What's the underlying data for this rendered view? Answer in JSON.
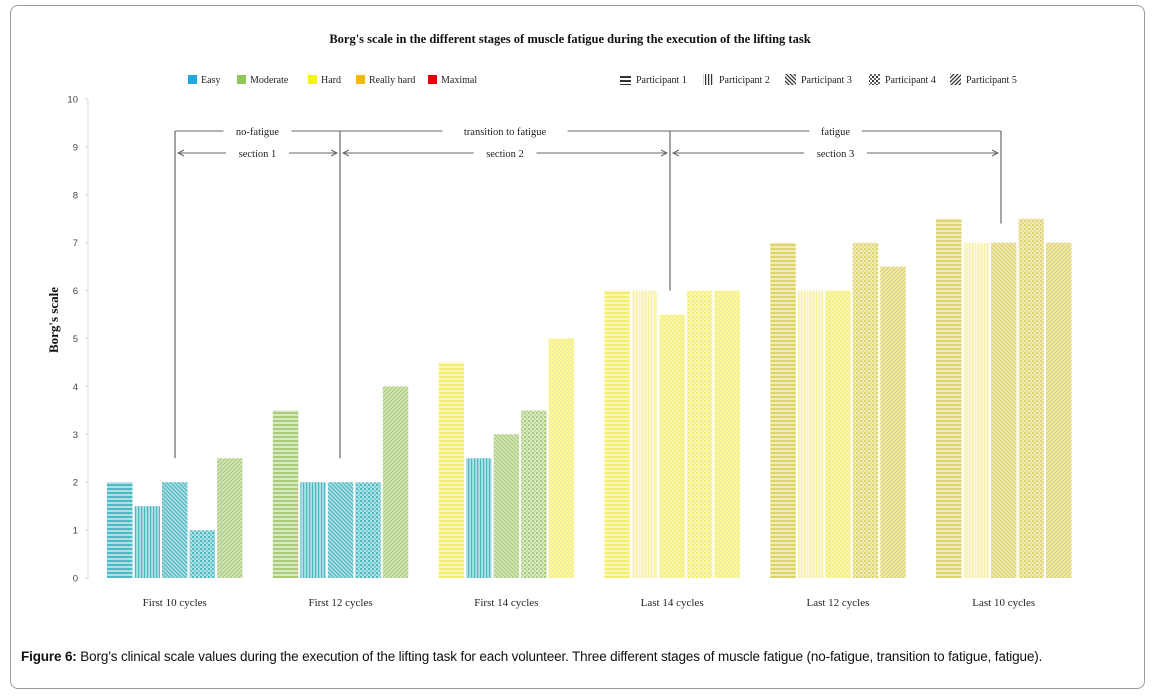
{
  "figure": {
    "caption_label": "Figure 6:",
    "caption_text": " Borg’s clinical scale values during the execution of the lifting task for each volunteer. Three different stages of muscle fatigue (no-fatigue, transition to fatigue, fatigue)."
  },
  "chart_data": {
    "type": "bar",
    "title": "Borg's scale in the different stages of muscle fatigue during the execution of the lifting task",
    "xlabel": "",
    "ylabel": "Borg's scale",
    "ylim": [
      0,
      10
    ],
    "yticks": [
      "0",
      "1",
      "2",
      "3",
      "4",
      "5",
      "6",
      "7",
      "8",
      "9",
      "10"
    ],
    "grid": false,
    "categories": [
      "First 10 cycles",
      "First 12 cycles",
      "First 14 cycles",
      "Last 14 cycles",
      "Last 12 cycles",
      "Last 10 cycles"
    ],
    "series": [
      {
        "name": "Participant 1",
        "pattern": "horizontal",
        "values": [
          2,
          3.5,
          4.5,
          6,
          7,
          7.5
        ],
        "ratings": [
          "Easy",
          "Moderate",
          "Hard",
          "Hard",
          "Really hard",
          "Really hard"
        ]
      },
      {
        "name": "Participant 2",
        "pattern": "vertical",
        "values": [
          1.5,
          2,
          2.5,
          6,
          6,
          7
        ],
        "ratings": [
          "Easy",
          "Easy",
          "Easy",
          "Hard",
          "Hard",
          "Hard"
        ]
      },
      {
        "name": "Participant 3",
        "pattern": "diagonal-down",
        "values": [
          2,
          2,
          3,
          5.5,
          6,
          7
        ],
        "ratings": [
          "Easy",
          "Easy",
          "Moderate",
          "Hard",
          "Hard",
          "Really hard"
        ]
      },
      {
        "name": "Participant 4",
        "pattern": "grid",
        "values": [
          1,
          2,
          3.5,
          6,
          7,
          7.5
        ],
        "ratings": [
          "Easy",
          "Easy",
          "Moderate",
          "Hard",
          "Really hard",
          "Really hard"
        ]
      },
      {
        "name": "Participant 5",
        "pattern": "diagonal-up",
        "values": [
          2.5,
          4,
          5,
          6,
          6.5,
          7
        ],
        "ratings": [
          "Moderate",
          "Moderate",
          "Hard",
          "Hard",
          "Really hard",
          "Really hard"
        ]
      }
    ],
    "color_legend": [
      {
        "label": "Easy",
        "color": "#1ea7e1"
      },
      {
        "label": "Moderate",
        "color": "#8dc856"
      },
      {
        "label": "Hard",
        "color": "#f5f50c"
      },
      {
        "label": "Really hard",
        "color": "#f5b800"
      },
      {
        "label": "Maximal",
        "color": "#e8000b"
      }
    ],
    "bar_colors": {
      "Easy": "#4fb8c2",
      "Moderate": "#a9cc7a",
      "Hard": "#f3ee6e",
      "Really hard": "#ddd36a",
      "Maximal": "#e8000b"
    },
    "pattern_legend": [
      {
        "label": "Participant 1",
        "pattern": "horizontal"
      },
      {
        "label": "Participant 2",
        "pattern": "vertical"
      },
      {
        "label": "Participant 3",
        "pattern": "diagonal-down"
      },
      {
        "label": "Participant 4",
        "pattern": "grid"
      },
      {
        "label": "Participant 5",
        "pattern": "diagonal-up"
      }
    ],
    "annotations": {
      "stages": [
        {
          "label": "no-fatigue",
          "from_category": 0,
          "to_category": 1
        },
        {
          "label": "transition to fatigue",
          "from_category": 1,
          "to_category": 3
        },
        {
          "label": "fatigue",
          "from_category": 3,
          "to_category": 5
        }
      ],
      "sections": [
        {
          "label": "section 1",
          "from_category": 0,
          "to_category": 1
        },
        {
          "label": "section 2",
          "from_category": 1,
          "to_category": 3
        },
        {
          "label": "section 3",
          "from_category": 3,
          "to_category": 5
        }
      ],
      "marker_tops": [
        2.5,
        2.5,
        null,
        6.0,
        null,
        7.4
      ]
    }
  }
}
